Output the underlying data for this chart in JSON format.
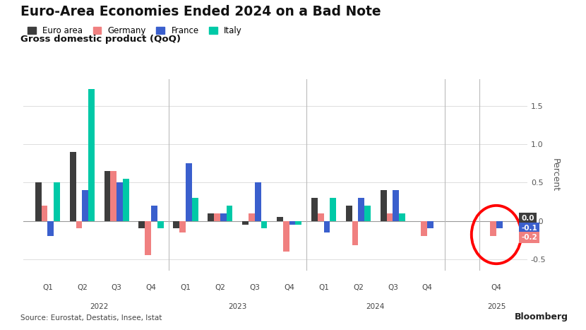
{
  "title": "Euro-Area Economies Ended 2024 on a Bad Note",
  "subtitle": "Gross domestic product (QoQ)",
  "source": "Source: Eurostat, Destatis, Insee, Istat",
  "ylabel": "Percent",
  "colors": {
    "euro_area": "#3d3d3d",
    "germany": "#f08080",
    "france": "#3a5fcd",
    "italy": "#00c9a7"
  },
  "legend_labels": [
    "Euro area",
    "Germany",
    "France",
    "Italy"
  ],
  "quarters": [
    "Q1",
    "Q2",
    "Q3",
    "Q4",
    "Q1",
    "Q2",
    "Q3",
    "Q4",
    "Q1",
    "Q2",
    "Q3",
    "Q4"
  ],
  "ylim": [
    -0.65,
    1.85
  ],
  "yticks": [
    -0.5,
    0.0,
    0.5,
    1.0,
    1.5
  ],
  "data": {
    "euro_area": [
      0.5,
      0.9,
      0.65,
      -0.1,
      -0.1,
      0.1,
      -0.05,
      0.05,
      0.3,
      0.2,
      0.4,
      0.0
    ],
    "germany": [
      0.2,
      -0.1,
      0.65,
      -0.45,
      -0.15,
      0.1,
      0.1,
      -0.4,
      0.1,
      -0.32,
      0.1,
      -0.2
    ],
    "france": [
      -0.2,
      0.4,
      0.5,
      0.2,
      0.75,
      0.1,
      0.5,
      -0.05,
      -0.15,
      0.3,
      0.4,
      -0.1
    ],
    "italy": [
      0.5,
      1.72,
      0.55,
      -0.1,
      0.3,
      0.2,
      -0.1,
      -0.05,
      0.3,
      0.2,
      0.1,
      0.0
    ]
  },
  "last_bar": {
    "euro_area": 0.0,
    "germany": -0.2,
    "france": -0.1,
    "italy": 0.0
  },
  "annotation_values": [
    "0.0",
    "-0.1",
    "-0.2"
  ],
  "annotation_colors": [
    "#3d3d3d",
    "#3a5fcd",
    "#f08080"
  ]
}
